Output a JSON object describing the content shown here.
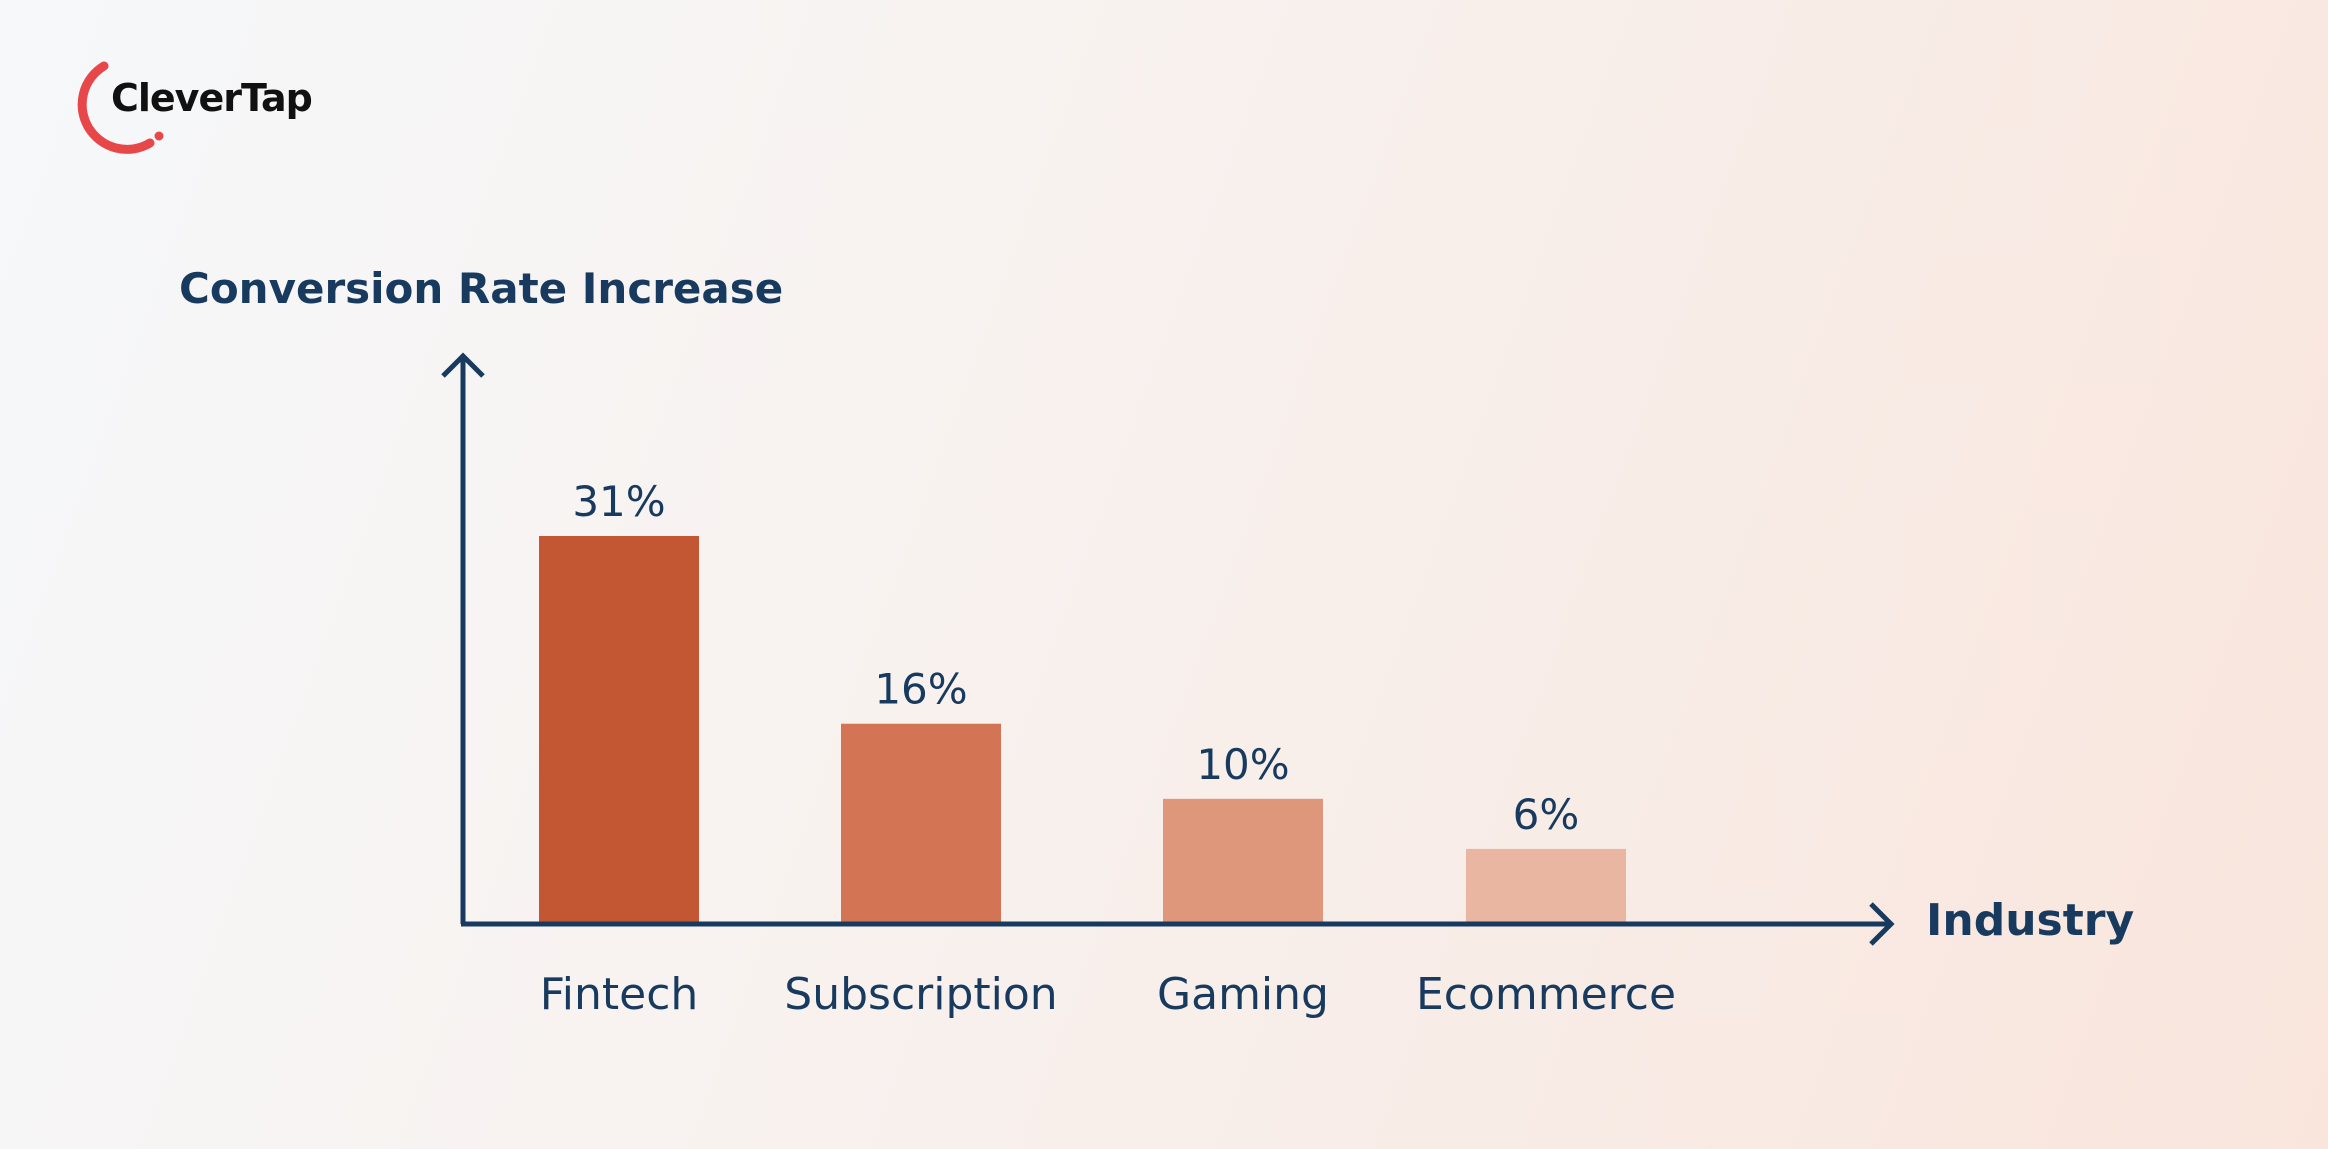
{
  "brand": {
    "name": "CleverTap",
    "accent_color": "#e8474a",
    "text_color": "#111111"
  },
  "chart_data": {
    "type": "bar",
    "ylabel": "Conversion Rate Increase",
    "xlabel": "Industry",
    "categories": [
      "Fintech",
      "Subscription",
      "Gaming",
      "Ecommerce"
    ],
    "values": [
      31,
      16,
      10,
      6
    ],
    "value_labels": [
      "31%",
      "16%",
      "10%",
      "6%"
    ],
    "value_suffix": "%",
    "ylim": [
      0,
      31
    ],
    "grid": false,
    "legend": "none",
    "axis_color": "#173a5e",
    "bar_colors": [
      "#c35733",
      "#d37555",
      "#df977c",
      "#e9b6a2"
    ]
  }
}
